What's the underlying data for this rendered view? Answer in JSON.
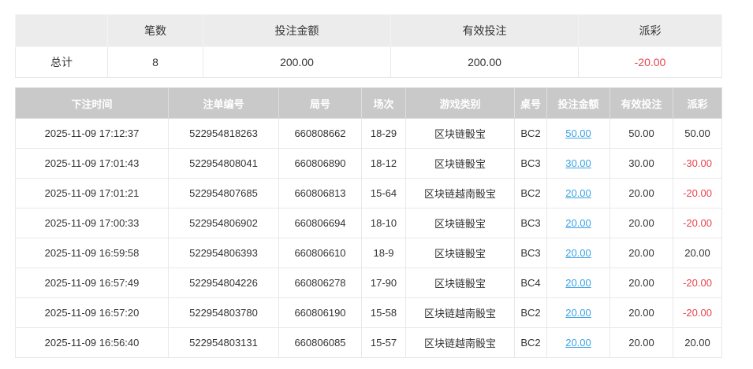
{
  "colors": {
    "negative": "#e8434f",
    "link": "#3aa3e3",
    "header_bg": "#c9c9c9"
  },
  "summary": {
    "headers": [
      "",
      "笔数",
      "投注金额",
      "有效投注",
      "派彩"
    ],
    "row": {
      "label": "总计",
      "count": "8",
      "bet": "200.00",
      "valid": "200.00",
      "payout": "-20.00"
    }
  },
  "detail": {
    "headers": [
      "下注时间",
      "注单编号",
      "局号",
      "场次",
      "游戏类别",
      "桌号",
      "投注金额",
      "有效投注",
      "派彩"
    ],
    "rows": [
      [
        "2025-11-09 17:12:37",
        "522954818263",
        "660808662",
        "18-29",
        "区块链骰宝",
        "BC2",
        "50.00",
        "50.00",
        "50.00"
      ],
      [
        "2025-11-09 17:01:43",
        "522954808041",
        "660806890",
        "18-12",
        "区块链骰宝",
        "BC3",
        "30.00",
        "30.00",
        "-30.00"
      ],
      [
        "2025-11-09 17:01:21",
        "522954807685",
        "660806813",
        "15-64",
        "区块链越南骰宝",
        "BC2",
        "20.00",
        "20.00",
        "-20.00"
      ],
      [
        "2025-11-09 17:00:33",
        "522954806902",
        "660806694",
        "18-10",
        "区块链骰宝",
        "BC3",
        "20.00",
        "20.00",
        "-20.00"
      ],
      [
        "2025-11-09 16:59:58",
        "522954806393",
        "660806610",
        "18-9",
        "区块链骰宝",
        "BC3",
        "20.00",
        "20.00",
        "20.00"
      ],
      [
        "2025-11-09 16:57:49",
        "522954804226",
        "660806278",
        "17-90",
        "区块链骰宝",
        "BC4",
        "20.00",
        "20.00",
        "-20.00"
      ],
      [
        "2025-11-09 16:57:20",
        "522954803780",
        "660806190",
        "15-58",
        "区块链越南骰宝",
        "BC2",
        "20.00",
        "20.00",
        "-20.00"
      ],
      [
        "2025-11-09 16:56:40",
        "522954803131",
        "660806085",
        "15-57",
        "区块链越南骰宝",
        "BC2",
        "20.00",
        "20.00",
        "20.00"
      ]
    ]
  }
}
